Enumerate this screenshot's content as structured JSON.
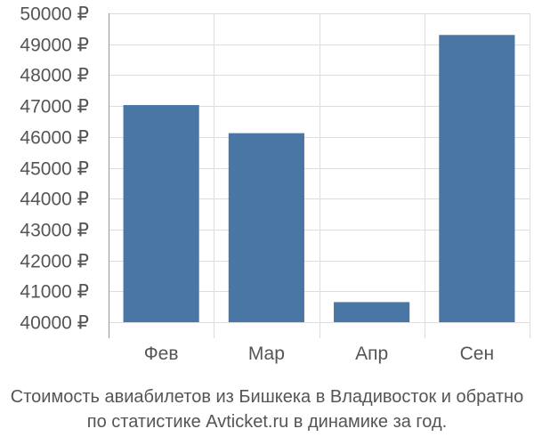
{
  "chart_data": {
    "type": "bar",
    "categories": [
      "Фев",
      "Мар",
      "Апр",
      "Сен"
    ],
    "values": [
      47030,
      46120,
      40650,
      49300
    ],
    "ylim": [
      40000,
      50000
    ],
    "yticks": [
      {
        "value": 40000,
        "label": "40000 ₽"
      },
      {
        "value": 41000,
        "label": "41000 ₽"
      },
      {
        "value": 42000,
        "label": "42000 ₽"
      },
      {
        "value": 43000,
        "label": "43000 ₽"
      },
      {
        "value": 44000,
        "label": "44000 ₽"
      },
      {
        "value": 45000,
        "label": "45000 ₽"
      },
      {
        "value": 46000,
        "label": "46000 ₽"
      },
      {
        "value": 47000,
        "label": "47000 ₽"
      },
      {
        "value": 48000,
        "label": "48000 ₽"
      },
      {
        "value": 49000,
        "label": "49000 ₽"
      },
      {
        "value": 50000,
        "label": "50000 ₽"
      }
    ],
    "grid": true,
    "bar_color": "#4a76a6",
    "grid_color": "#dddddd",
    "axis_color": "#999999"
  },
  "caption": {
    "line1": "Стоимость авиабилетов из Бишкека в Владивосток и обратно",
    "line2": "по статистике Avticket.ru в динамике за год."
  }
}
